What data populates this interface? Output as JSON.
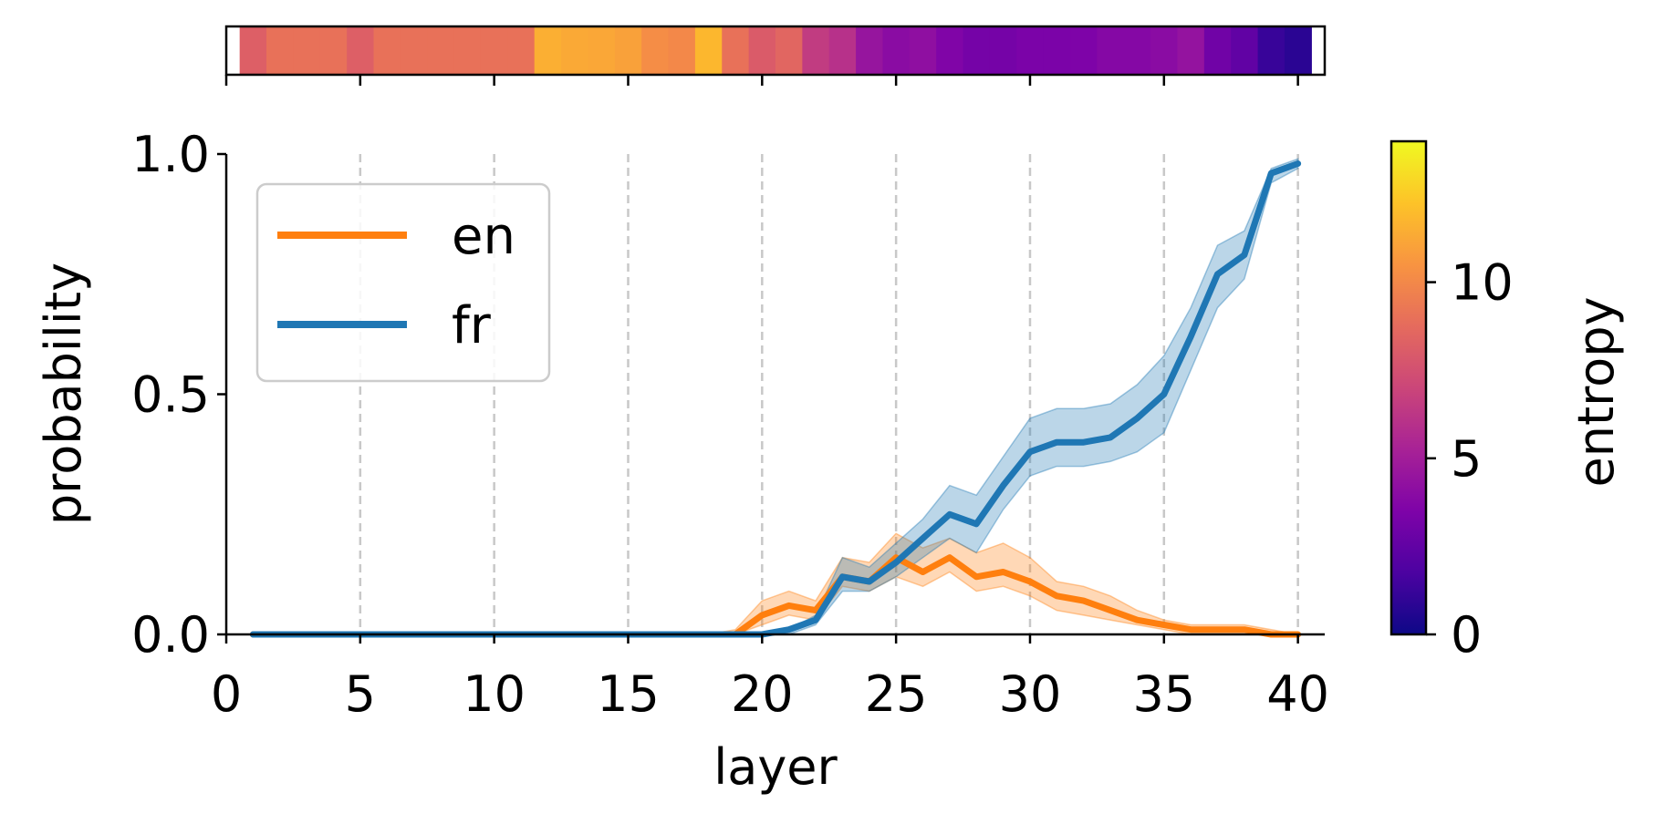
{
  "chart_data": {
    "type": "line",
    "xlabel": "layer",
    "ylabel": "probability",
    "xlim": [
      0,
      41
    ],
    "ylim": [
      0,
      1
    ],
    "x_ticks": [
      "0",
      "5",
      "10",
      "15",
      "20",
      "25",
      "30",
      "35",
      "40"
    ],
    "y_ticks": [
      "0.0",
      "0.5",
      "1.0"
    ],
    "grid": "vertical dashed lines at x ticks",
    "legend_position": "upper-left",
    "x": [
      1,
      2,
      3,
      4,
      5,
      6,
      7,
      8,
      9,
      10,
      11,
      12,
      13,
      14,
      15,
      16,
      17,
      18,
      19,
      20,
      21,
      22,
      23,
      24,
      25,
      26,
      27,
      28,
      29,
      30,
      31,
      32,
      33,
      34,
      35,
      36,
      37,
      38,
      39,
      40
    ],
    "series": [
      {
        "name": "en",
        "color": "#ff7f0e",
        "values": [
          0,
          0,
          0,
          0,
          0,
          0,
          0,
          0,
          0,
          0,
          0,
          0,
          0,
          0,
          0,
          0,
          0,
          0,
          0,
          0.04,
          0.06,
          0.05,
          0.12,
          0.11,
          0.16,
          0.13,
          0.16,
          0.12,
          0.13,
          0.11,
          0.08,
          0.07,
          0.05,
          0.03,
          0.02,
          0.01,
          0.01,
          0.01,
          0,
          0
        ],
        "lower": [
          0,
          0,
          0,
          0,
          0,
          0,
          0,
          0,
          0,
          0,
          0,
          0,
          0,
          0,
          0,
          0,
          0,
          0,
          0,
          0.02,
          0.04,
          0.03,
          0.1,
          0.09,
          0.12,
          0.1,
          0.13,
          0.09,
          0.1,
          0.08,
          0.05,
          0.04,
          0.03,
          0.02,
          0.01,
          0,
          0,
          0,
          0,
          0
        ],
        "upper": [
          0,
          0,
          0,
          0,
          0,
          0,
          0,
          0,
          0,
          0,
          0,
          0,
          0,
          0,
          0,
          0,
          0,
          0,
          0.01,
          0.07,
          0.09,
          0.07,
          0.16,
          0.15,
          0.21,
          0.18,
          0.2,
          0.17,
          0.19,
          0.16,
          0.11,
          0.1,
          0.08,
          0.05,
          0.03,
          0.02,
          0.02,
          0.02,
          0.01,
          0
        ]
      },
      {
        "name": "fr",
        "color": "#1f77b4",
        "values": [
          0,
          0,
          0,
          0,
          0,
          0,
          0,
          0,
          0,
          0,
          0,
          0,
          0,
          0,
          0,
          0,
          0,
          0,
          0,
          0,
          0.01,
          0.03,
          0.12,
          0.11,
          0.15,
          0.2,
          0.25,
          0.23,
          0.31,
          0.38,
          0.4,
          0.4,
          0.41,
          0.45,
          0.5,
          0.62,
          0.75,
          0.79,
          0.96,
          0.98
        ],
        "lower": [
          0,
          0,
          0,
          0,
          0,
          0,
          0,
          0,
          0,
          0,
          0,
          0,
          0,
          0,
          0,
          0,
          0,
          0,
          0,
          0,
          0,
          0.02,
          0.09,
          0.09,
          0.12,
          0.16,
          0.2,
          0.17,
          0.26,
          0.33,
          0.35,
          0.35,
          0.36,
          0.38,
          0.42,
          0.55,
          0.68,
          0.74,
          0.94,
          0.97
        ],
        "upper": [
          0,
          0,
          0,
          0,
          0,
          0,
          0,
          0,
          0,
          0,
          0,
          0,
          0,
          0,
          0,
          0,
          0,
          0,
          0,
          0,
          0.01,
          0.04,
          0.16,
          0.14,
          0.19,
          0.24,
          0.31,
          0.29,
          0.37,
          0.45,
          0.47,
          0.47,
          0.48,
          0.52,
          0.58,
          0.68,
          0.81,
          0.84,
          0.97,
          0.99
        ]
      }
    ],
    "top_strip": {
      "colormap": "plasma",
      "values": [
        8.2,
        9.0,
        9.0,
        9.0,
        8.2,
        9.0,
        9.0,
        9.0,
        9.0,
        9.0,
        9.0,
        11.5,
        11.3,
        11.2,
        11.0,
        10.2,
        10.0,
        11.8,
        9.0,
        8.0,
        8.5,
        6.5,
        6.0,
        4.5,
        4.0,
        4.2,
        3.6,
        3.2,
        3.2,
        3.4,
        3.4,
        3.5,
        3.8,
        3.8,
        4.0,
        4.4,
        3.0,
        2.5,
        1.2,
        0.8
      ]
    },
    "colorbar": {
      "label": "entropy",
      "colormap": "plasma",
      "range": [
        0,
        14
      ],
      "ticks": [
        "0",
        "5",
        "10"
      ]
    }
  }
}
